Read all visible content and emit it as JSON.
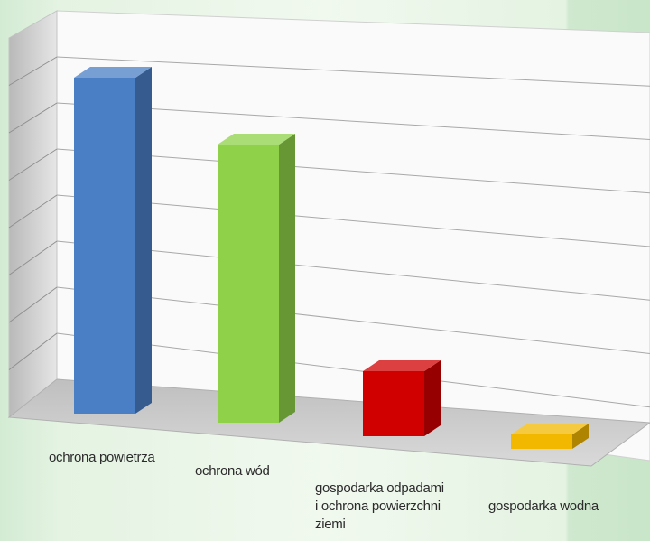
{
  "chart_data": {
    "type": "bar",
    "title": "",
    "xlabel": "",
    "ylabel": "",
    "categories": [
      "ochrona powietrza",
      "ochrona wód",
      "gospodarka odpadami\ni ochrona powierzchni\nziemi",
      "gospodarka wodna"
    ],
    "values": [
      93,
      77,
      18,
      4
    ],
    "ylim": [
      0,
      100
    ],
    "grid": true,
    "legend": "none",
    "three_d": true,
    "colors": [
      "#4a7fc6",
      "#8fd24a",
      "#d00000",
      "#f2b800"
    ]
  },
  "background": {
    "panel_color": "#dcefdc",
    "center_color": "#ecf7ea"
  }
}
